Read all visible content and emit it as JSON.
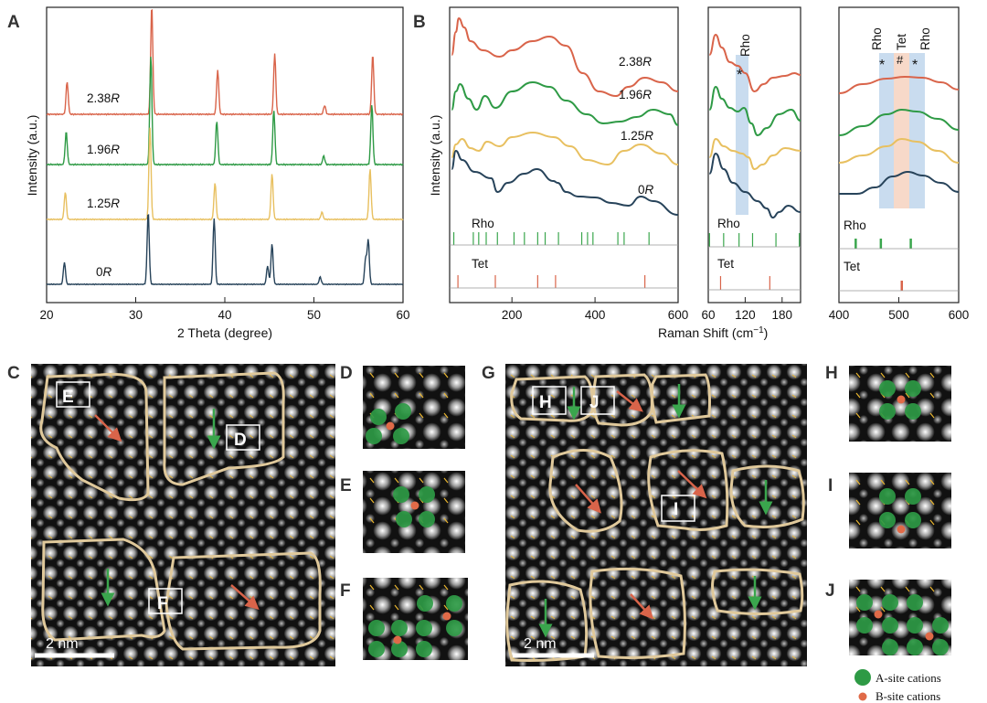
{
  "panels": {
    "A": "A",
    "B": "B",
    "C": "C",
    "D": "D",
    "E": "E",
    "F": "F",
    "G": "G",
    "H": "H",
    "I": "I",
    "J": "J"
  },
  "colors": {
    "r238": "#d9644a",
    "r196": "#2e9a45",
    "r125": "#e8c060",
    "r0": "#27435a",
    "rho_band": "#b7d0ea",
    "tet_band": "#f6d2c0"
  },
  "chart_data": [
    {
      "type": "line",
      "id": "xrd",
      "xlabel": "2 Theta (degree)",
      "ylabel": "Intensity (a.u.)",
      "xlim": [
        20,
        60
      ],
      "xticks": [
        "20",
        "30",
        "40",
        "50",
        "60"
      ],
      "series": [
        {
          "name": "2.38",
          "suffix": "R",
          "peaks": [
            [
              22.3,
              0.3
            ],
            [
              31.8,
              1.0
            ],
            [
              39.2,
              0.4
            ],
            [
              45.6,
              0.55
            ],
            [
              51.2,
              0.08
            ],
            [
              56.6,
              0.55
            ]
          ]
        },
        {
          "name": "1.96",
          "suffix": "R",
          "peaks": [
            [
              22.2,
              0.3
            ],
            [
              31.7,
              1.0
            ],
            [
              39.1,
              0.4
            ],
            [
              45.5,
              0.5
            ],
            [
              51.1,
              0.08
            ],
            [
              56.5,
              0.55
            ]
          ]
        },
        {
          "name": "1.25",
          "suffix": "R",
          "peaks": [
            [
              22.1,
              0.3
            ],
            [
              31.6,
              1.0
            ],
            [
              38.9,
              0.4
            ],
            [
              45.3,
              0.5
            ],
            [
              50.9,
              0.08
            ],
            [
              56.3,
              0.55
            ]
          ]
        },
        {
          "name": "0",
          "suffix": "R",
          "peaks": [
            [
              22.0,
              0.3
            ],
            [
              31.4,
              1.0
            ],
            [
              38.8,
              0.9
            ],
            [
              44.8,
              0.25
            ],
            [
              45.3,
              0.55
            ],
            [
              50.7,
              0.1
            ],
            [
              55.8,
              0.35
            ],
            [
              56.1,
              0.6
            ]
          ]
        }
      ]
    },
    {
      "type": "line",
      "id": "raman",
      "ylabel": "Intensity (a.u.)",
      "xlabel": "Raman Shift (cm",
      "xlabel_sup": "−1",
      "xlabel_end": ")",
      "ranges": [
        [
          50,
          600
        ],
        [
          60,
          210
        ],
        [
          400,
          600
        ]
      ],
      "xticks_1": [
        "200",
        "400",
        "600"
      ],
      "xticks_2": [
        "60",
        "120",
        "180"
      ],
      "xticks_3": [
        "400",
        "500",
        "600"
      ],
      "series_labels": [
        {
          "name": "2.38",
          "suffix": "R"
        },
        {
          "name": "1.96",
          "suffix": "R"
        },
        {
          "name": "1.25",
          "suffix": "R"
        },
        {
          "name": "0",
          "suffix": "R"
        }
      ],
      "reference": {
        "rho_label": "Rho",
        "tet_label": "Tet",
        "rho_lines_1": [
          60,
          107,
          120,
          138,
          165,
          205,
          230,
          262,
          280,
          312,
          368,
          382,
          395,
          455,
          470,
          530
        ],
        "tet_lines_1": [
          70,
          160,
          262,
          305,
          520
        ],
        "rho_lines_2": [
          62,
          85,
          110,
          132,
          170,
          208
        ],
        "tet_lines_2": [
          80,
          160
        ],
        "rho_lines_3": [
          428,
          470,
          520
        ],
        "tet_lines_3": [
          505
        ]
      },
      "annotations": {
        "rho_band_label": "Rho",
        "asterisk": "*",
        "hash": "#",
        "tet_band_label": "Tet"
      }
    }
  ],
  "images": {
    "scale_label": "2 nm"
  },
  "boxes": {
    "E": "E",
    "D": "D",
    "F": "F",
    "H": "H",
    "J": "J",
    "I": "I"
  },
  "legend": {
    "a_site": "A-site cations",
    "b_site": "B-site cations"
  }
}
